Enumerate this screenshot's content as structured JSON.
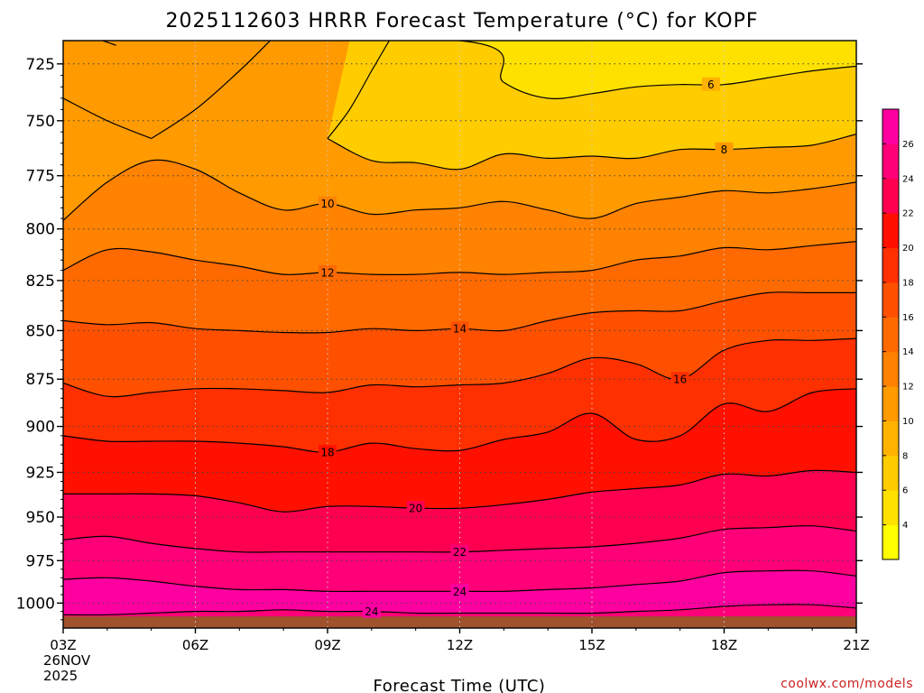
{
  "chart_data": {
    "type": "contour",
    "title": "2025112603 HRRR Forecast Temperature (°C) for KOPF",
    "xlabel": "Forecast Time (UTC)",
    "ylabel": "",
    "x_ticks": [
      "03Z",
      "06Z",
      "09Z",
      "12Z",
      "15Z",
      "18Z",
      "21Z"
    ],
    "x_date_label": [
      "26NOV",
      "2025"
    ],
    "x_hours": [
      3,
      4,
      5,
      6,
      7,
      8,
      9,
      10,
      11,
      12,
      13,
      14,
      15,
      16,
      17,
      18,
      19,
      20,
      21
    ],
    "xlim": [
      3,
      21
    ],
    "y_ticks": [
      "725",
      "750",
      "775",
      "800",
      "825",
      "850",
      "875",
      "900",
      "925",
      "950",
      "975",
      "1000"
    ],
    "y_tick_values": [
      725,
      750,
      775,
      800,
      825,
      850,
      875,
      900,
      925,
      950,
      975,
      1000
    ],
    "ylim_hpa": [
      715,
      1015
    ],
    "y_scale": "log-pressure",
    "grid": true,
    "surface_color": "#a0522d",
    "surface_pressure_hpa": 1008,
    "contour_interval": 2,
    "colorbar": {
      "position": "right",
      "ticks": [
        "4",
        "6",
        "8",
        "10",
        "12",
        "14",
        "16",
        "18",
        "20",
        "22",
        "24",
        "26"
      ],
      "levels": [
        2,
        4,
        6,
        8,
        10,
        12,
        14,
        16,
        18,
        20,
        22,
        24,
        26,
        28
      ],
      "colors": [
        "#ffff00",
        "#ffe100",
        "#ffcc00",
        "#ffb300",
        "#ff9a00",
        "#ff8200",
        "#ff6a00",
        "#ff5000",
        "#ff3000",
        "#ff1000",
        "#ff0050",
        "#ff0078",
        "#ff00a0"
      ]
    },
    "contour_lines": [
      {
        "level": 6,
        "label": "6",
        "label_at": 17.7,
        "x": [
          3,
          12,
          13,
          14,
          15,
          16,
          17,
          18,
          19,
          20,
          21
        ],
        "p": [
          715,
          715,
          733,
          740,
          738,
          735,
          734,
          734,
          731,
          728,
          726
        ]
      },
      {
        "level": 8,
        "label": "8",
        "label_at": 18.0,
        "x": [
          9,
          10,
          11,
          12,
          13,
          14,
          15,
          16,
          17,
          18,
          19,
          20,
          21
        ],
        "p": [
          758,
          768,
          769,
          772,
          765,
          767,
          766,
          767,
          763,
          763,
          762,
          761,
          756
        ]
      },
      {
        "level": 10,
        "label": "10",
        "label_at": 9.0,
        "x": [
          3,
          4,
          5,
          6,
          7,
          8,
          9,
          10,
          11,
          12,
          13,
          14,
          15,
          16,
          17,
          18,
          19,
          20,
          21
        ],
        "p": [
          796,
          778,
          768,
          772,
          783,
          791,
          788,
          793,
          791,
          790,
          787,
          791,
          795,
          788,
          785,
          782,
          783,
          781,
          778
        ]
      },
      {
        "level": 12,
        "label": "12",
        "label_at": 9.0,
        "x": [
          3,
          4,
          5,
          6,
          7,
          8,
          9,
          10,
          11,
          12,
          13,
          14,
          15,
          16,
          17,
          18,
          19,
          20,
          21
        ],
        "p": [
          820,
          810,
          811,
          815,
          818,
          822,
          821,
          822,
          822,
          821,
          822,
          821,
          820,
          815,
          813,
          809,
          810,
          808,
          806
        ]
      },
      {
        "level": 14,
        "label": "14",
        "label_at": 12.0,
        "x": [
          3,
          4,
          5,
          6,
          7,
          8,
          9,
          10,
          11,
          12,
          13,
          14,
          15,
          16,
          17,
          18,
          19,
          20,
          21
        ],
        "p": [
          845,
          847,
          846,
          849,
          850,
          851,
          851,
          849,
          850,
          849,
          850,
          845,
          841,
          840,
          840,
          835,
          831,
          831,
          831
        ]
      },
      {
        "level": 16,
        "label": "16",
        "label_at": 17.0,
        "x": [
          3,
          4,
          5,
          6,
          7,
          8,
          9,
          10,
          11,
          12,
          13,
          14,
          15,
          16,
          17,
          18,
          19,
          20,
          21
        ],
        "p": [
          877,
          884,
          882,
          880,
          880,
          881,
          882,
          878,
          879,
          878,
          877,
          872,
          864,
          867,
          875,
          860,
          855,
          855,
          854
        ]
      },
      {
        "level": 18,
        "label": "18",
        "label_at": 9.0,
        "x": [
          3,
          4,
          5,
          6,
          7,
          8,
          9,
          10,
          11,
          12,
          13,
          14,
          15,
          16,
          17,
          18,
          19,
          20,
          21
        ],
        "p": [
          905,
          908,
          908,
          908,
          909,
          911,
          914,
          909,
          912,
          913,
          907,
          903,
          893,
          907,
          905,
          888,
          892,
          882,
          880
        ]
      },
      {
        "level": 20,
        "label": "20",
        "label_at": 11.0,
        "x": [
          3,
          4,
          5,
          6,
          7,
          8,
          9,
          10,
          11,
          12,
          13,
          14,
          15,
          16,
          17,
          18,
          19,
          20,
          21
        ],
        "p": [
          937,
          937,
          937,
          938,
          942,
          947,
          944,
          944,
          945,
          945,
          943,
          940,
          936,
          934,
          932,
          926,
          927,
          924,
          925
        ]
      },
      {
        "level": 22,
        "label": "22",
        "label_at": 12.0,
        "x": [
          3,
          4,
          5,
          6,
          7,
          8,
          9,
          10,
          11,
          12,
          13,
          14,
          15,
          16,
          17,
          18,
          19,
          20,
          21
        ],
        "p": [
          963,
          961,
          965,
          968,
          970,
          970,
          970,
          970,
          970,
          970,
          969,
          968,
          967,
          965,
          962,
          957,
          956,
          955,
          958
        ]
      },
      {
        "level": 24,
        "label": "24",
        "label_at": 12.0,
        "x": [
          3,
          4,
          5,
          6,
          7,
          8,
          9,
          10,
          11,
          12,
          13,
          14,
          15,
          16,
          17,
          18,
          19,
          20,
          21
        ],
        "p": [
          986,
          985,
          987,
          990,
          992,
          992,
          993,
          993,
          993,
          993,
          993,
          992,
          991,
          989,
          987,
          982,
          981,
          981,
          984
        ]
      },
      {
        "level": 24,
        "label": "24",
        "label_at": 10.0,
        "x": [
          3,
          4,
          5,
          6,
          7,
          8,
          9,
          10,
          11,
          12,
          13,
          14,
          15,
          16,
          17,
          18,
          19,
          20,
          21
        ],
        "p": [
          1007,
          1007,
          1006,
          1005,
          1005,
          1004,
          1005,
          1005,
          1006,
          1006,
          1006,
          1006,
          1006,
          1005,
          1004,
          1002,
          1001,
          1001,
          1003
        ]
      },
      {
        "level": 10,
        "label": "",
        "label_at": null,
        "x": [
          3,
          4,
          5
        ],
        "p": [
          740,
          750,
          758
        ]
      },
      {
        "level": 10,
        "label": "",
        "label_at": null,
        "x": [
          5,
          6,
          7,
          7.7
        ],
        "p": [
          758,
          745,
          728,
          715
        ]
      },
      {
        "level": 8,
        "label": "",
        "label_at": null,
        "x": [
          9,
          9.5,
          10,
          10.4
        ],
        "p": [
          758,
          745,
          728,
          715
        ]
      },
      {
        "level": 6,
        "label": "",
        "label_at": null,
        "x": [
          3.9,
          4.2
        ],
        "p": [
          715,
          717
        ]
      }
    ],
    "colored_regions": [
      {
        "level": 6,
        "x": [
          3,
          21
        ],
        "top": [
          715,
          715
        ],
        "bottom_ref": "contour_6"
      },
      {
        "level": 8,
        "x": [
          9,
          21
        ],
        "top_ref": "contour_6",
        "bottom_ref": "contour_8"
      },
      {
        "level": 10,
        "x": [
          3,
          21
        ],
        "top_ref": "contour_8",
        "bottom_ref": "contour_10"
      }
    ]
  },
  "credit": "coolwx.com/models"
}
